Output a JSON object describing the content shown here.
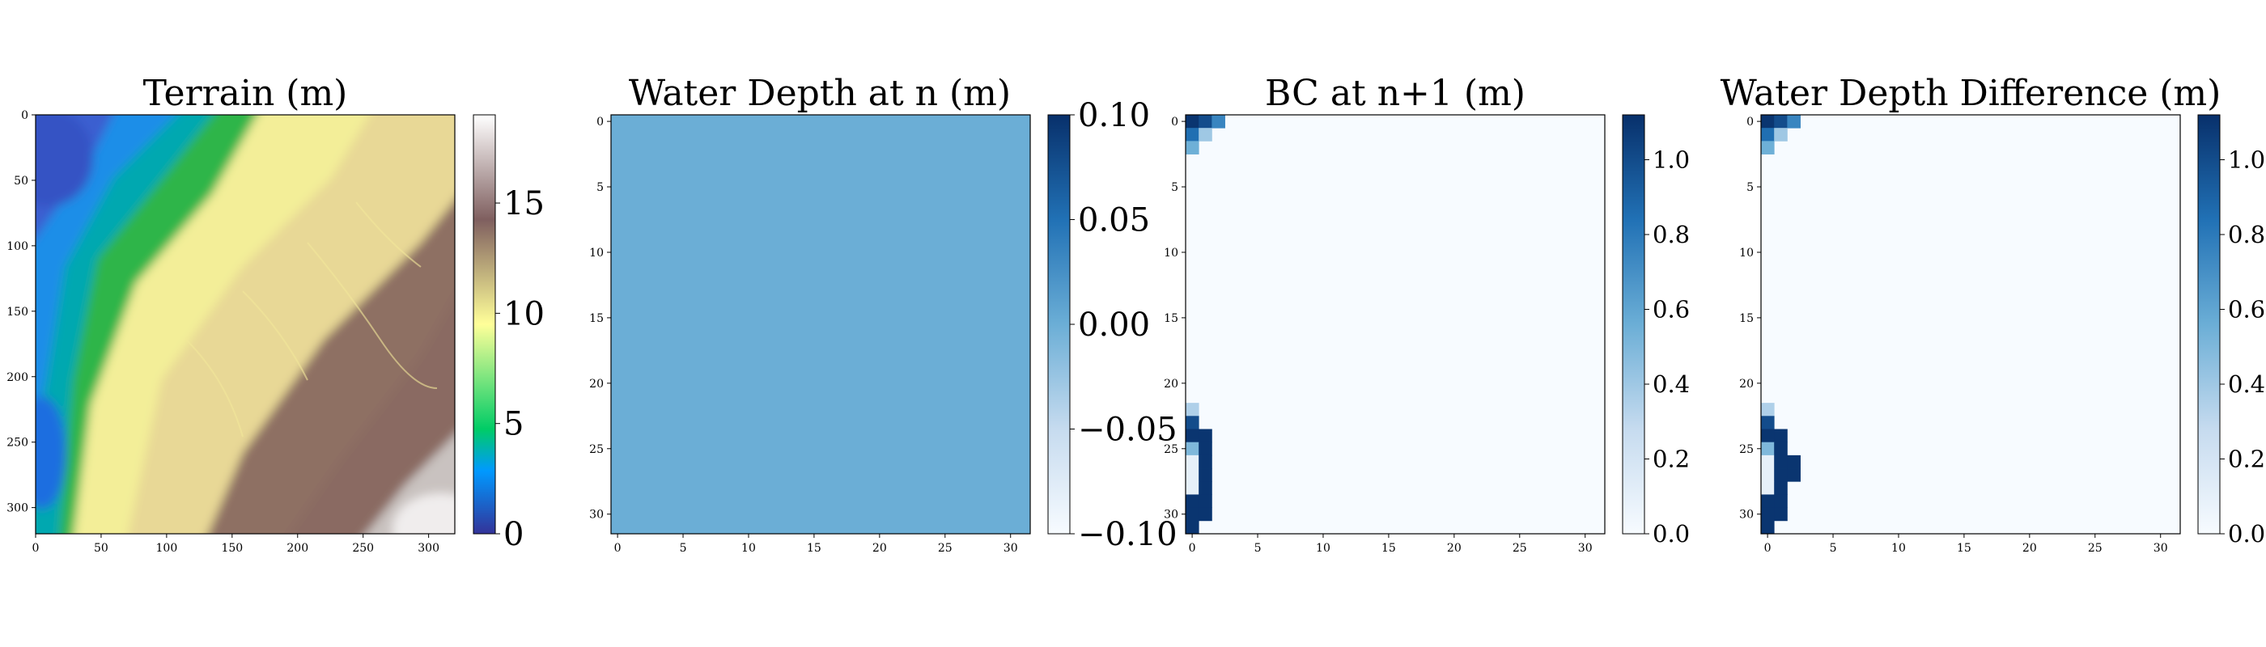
{
  "chart_data": [
    {
      "type": "heatmap",
      "title": "Terrain (m)",
      "grid": false,
      "colormap": "terrain",
      "xlim": [
        0,
        320
      ],
      "ylim": [
        320,
        0
      ],
      "xticks": [
        "0",
        "50",
        "100",
        "150",
        "200",
        "250",
        "300"
      ],
      "yticks": [
        "0",
        "50",
        "100",
        "150",
        "200",
        "250",
        "300"
      ],
      "colorbar": {
        "min": 0,
        "max": 19,
        "ticks": [
          "0",
          "5",
          "10",
          "15"
        ]
      }
    },
    {
      "type": "heatmap",
      "title": "Water Depth at n (m)",
      "grid": false,
      "colormap": "Blues",
      "uniform_value": 0.0,
      "xlim": [
        0,
        32
      ],
      "ylim": [
        32,
        0
      ],
      "xticks": [
        "0",
        "5",
        "10",
        "15",
        "20",
        "25",
        "30"
      ],
      "yticks": [
        "0",
        "5",
        "10",
        "15",
        "20",
        "25",
        "30"
      ],
      "colorbar": {
        "min": -0.1,
        "max": 0.1,
        "ticks": [
          "−0.10",
          "−0.05",
          "0.00",
          "0.05",
          "0.10"
        ]
      }
    },
    {
      "type": "heatmap",
      "title": "BC at n+1 (m)",
      "grid": false,
      "colormap": "Blues",
      "xlim": [
        0,
        32
      ],
      "ylim": [
        32,
        0
      ],
      "xticks": [
        "0",
        "5",
        "10",
        "15",
        "20",
        "25",
        "30"
      ],
      "yticks": [
        "0",
        "5",
        "10",
        "15",
        "20",
        "25",
        "30"
      ],
      "colorbar": {
        "min": 0,
        "max": 1.12,
        "ticks": [
          "0.0",
          "0.2",
          "0.4",
          "0.6",
          "0.8",
          "1.0"
        ]
      },
      "cells": [
        {
          "r": 0,
          "c": 0,
          "v": 1.1
        },
        {
          "r": 0,
          "c": 1,
          "v": 1.0
        },
        {
          "r": 0,
          "c": 2,
          "v": 0.75
        },
        {
          "r": 1,
          "c": 0,
          "v": 0.85
        },
        {
          "r": 1,
          "c": 1,
          "v": 0.4
        },
        {
          "r": 2,
          "c": 0,
          "v": 0.55
        },
        {
          "r": 22,
          "c": 0,
          "v": 0.35
        },
        {
          "r": 23,
          "c": 0,
          "v": 1.0
        },
        {
          "r": 24,
          "c": 0,
          "v": 1.1
        },
        {
          "r": 24,
          "c": 1,
          "v": 1.1
        },
        {
          "r": 25,
          "c": 0,
          "v": 0.5
        },
        {
          "r": 25,
          "c": 1,
          "v": 1.1
        },
        {
          "r": 26,
          "c": 0,
          "v": 0.1
        },
        {
          "r": 26,
          "c": 1,
          "v": 1.1
        },
        {
          "r": 27,
          "c": 0,
          "v": 0.1
        },
        {
          "r": 27,
          "c": 1,
          "v": 1.1
        },
        {
          "r": 28,
          "c": 0,
          "v": 0.1
        },
        {
          "r": 28,
          "c": 1,
          "v": 1.1
        },
        {
          "r": 29,
          "c": 0,
          "v": 1.1
        },
        {
          "r": 29,
          "c": 1,
          "v": 1.1
        },
        {
          "r": 30,
          "c": 0,
          "v": 1.1
        },
        {
          "r": 30,
          "c": 1,
          "v": 1.1
        },
        {
          "r": 31,
          "c": 0,
          "v": 1.1
        }
      ]
    },
    {
      "type": "heatmap",
      "title": "Water Depth Difference (m)",
      "grid": false,
      "colormap": "Blues",
      "xlim": [
        0,
        32
      ],
      "ylim": [
        32,
        0
      ],
      "xticks": [
        "0",
        "5",
        "10",
        "15",
        "20",
        "25",
        "30"
      ],
      "yticks": [
        "0",
        "5",
        "10",
        "15",
        "20",
        "25",
        "30"
      ],
      "colorbar": {
        "min": 0,
        "max": 1.12,
        "ticks": [
          "0.0",
          "0.2",
          "0.4",
          "0.6",
          "0.8",
          "1.0"
        ]
      },
      "cells": [
        {
          "r": 0,
          "c": 0,
          "v": 1.1
        },
        {
          "r": 0,
          "c": 1,
          "v": 1.0
        },
        {
          "r": 0,
          "c": 2,
          "v": 0.75
        },
        {
          "r": 1,
          "c": 0,
          "v": 0.85
        },
        {
          "r": 1,
          "c": 1,
          "v": 0.4
        },
        {
          "r": 2,
          "c": 0,
          "v": 0.55
        },
        {
          "r": 22,
          "c": 0,
          "v": 0.35
        },
        {
          "r": 23,
          "c": 0,
          "v": 1.0
        },
        {
          "r": 24,
          "c": 0,
          "v": 1.1
        },
        {
          "r": 24,
          "c": 1,
          "v": 1.1
        },
        {
          "r": 25,
          "c": 0,
          "v": 0.5
        },
        {
          "r": 25,
          "c": 1,
          "v": 1.1
        },
        {
          "r": 26,
          "c": 0,
          "v": 0.1
        },
        {
          "r": 26,
          "c": 1,
          "v": 1.1
        },
        {
          "r": 26,
          "c": 2,
          "v": 1.1
        },
        {
          "r": 27,
          "c": 0,
          "v": 0.1
        },
        {
          "r": 27,
          "c": 1,
          "v": 1.1
        },
        {
          "r": 27,
          "c": 2,
          "v": 1.1
        },
        {
          "r": 28,
          "c": 0,
          "v": 0.1
        },
        {
          "r": 28,
          "c": 1,
          "v": 1.1
        },
        {
          "r": 29,
          "c": 0,
          "v": 1.1
        },
        {
          "r": 29,
          "c": 1,
          "v": 1.1
        },
        {
          "r": 30,
          "c": 0,
          "v": 1.1
        },
        {
          "r": 30,
          "c": 1,
          "v": 1.1
        },
        {
          "r": 31,
          "c": 0,
          "v": 1.1
        }
      ]
    }
  ]
}
